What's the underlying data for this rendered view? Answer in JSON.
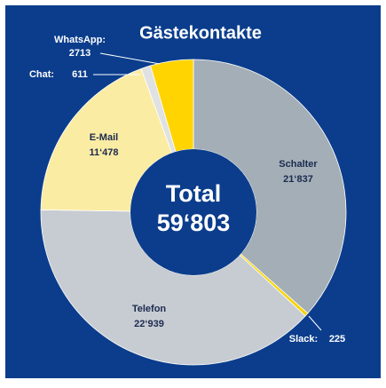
{
  "chart_data": {
    "type": "donut",
    "title": "Gästekontakte",
    "categories": [
      "Schalter",
      "Slack:",
      "Telefon",
      "E-Mail",
      "Chat:",
      "WhatsApp:"
    ],
    "values": [
      21837,
      225,
      22939,
      11478,
      611,
      2713
    ],
    "value_labels": [
      "21‘837",
      "225",
      "22‘939",
      "11‘478",
      "611",
      "2713"
    ],
    "colors": [
      "#a4aeb7",
      "#f7d300",
      "#c7ccd2",
      "#fbeca3",
      "#dfe1e3",
      "#ffd400"
    ],
    "center_title": "Total",
    "total": {
      "value": 59803,
      "label": "59‘803"
    }
  }
}
